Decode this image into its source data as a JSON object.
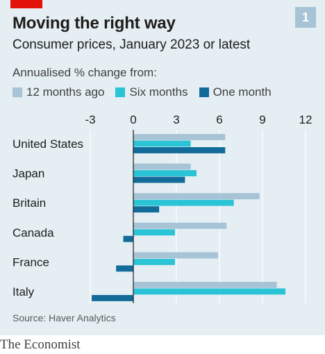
{
  "header": {
    "title": "Moving the right way",
    "subtitle": "Consumer prices, January 2023 or latest",
    "badge": "1"
  },
  "legend": {
    "title": "Annualised % change from:",
    "items": [
      {
        "label": "12 months ago",
        "color": "#a7c4d6"
      },
      {
        "label": "Six months",
        "color": "#2bc4d6"
      },
      {
        "label": "One month",
        "color": "#136b9a"
      }
    ]
  },
  "footer": {
    "source": "Source: Haver Analytics",
    "brand": "The Economist"
  },
  "colors": {
    "panel": "#e4eef3",
    "accent_red": "#e3120b",
    "grid": "#ffffff",
    "zero_line": "#1d1d1b"
  },
  "chart_data": {
    "type": "bar",
    "orientation": "horizontal",
    "categories": [
      "United States",
      "Japan",
      "Britain",
      "Canada",
      "France",
      "Italy"
    ],
    "series": [
      {
        "name": "12 months ago",
        "values": [
          6.4,
          4.0,
          8.8,
          6.5,
          5.9,
          10.0
        ]
      },
      {
        "name": "Six months",
        "values": [
          4.0,
          4.4,
          7.0,
          2.9,
          2.9,
          10.6
        ]
      },
      {
        "name": "One month",
        "values": [
          6.4,
          3.6,
          1.8,
          -0.7,
          -1.2,
          -2.9
        ]
      }
    ],
    "xlim": [
      -3,
      12
    ],
    "xticks": [
      "-3",
      "0",
      "3",
      "6",
      "9",
      "12"
    ],
    "grid": true,
    "legend_position": "top-left"
  }
}
